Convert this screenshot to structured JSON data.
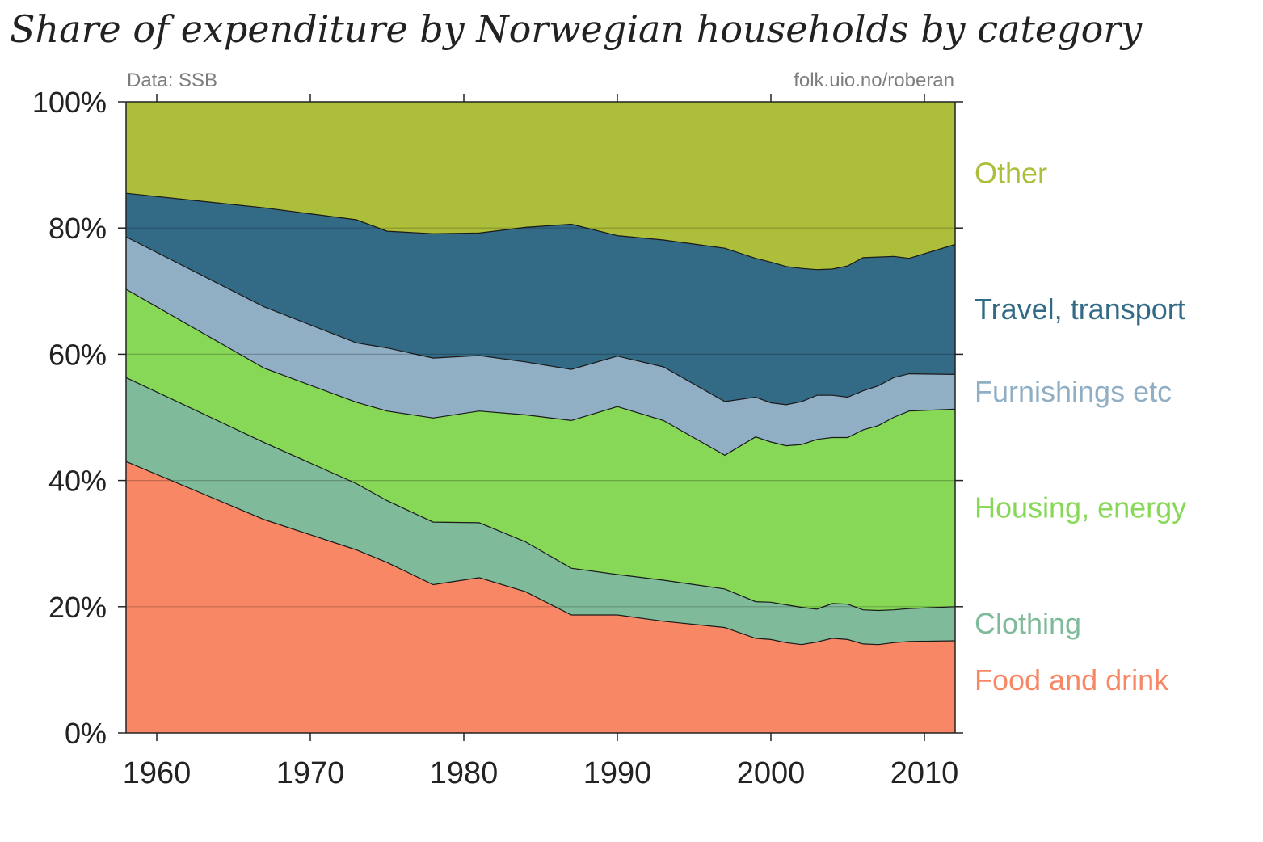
{
  "chart_data": {
    "type": "area",
    "stacked": true,
    "normalized": true,
    "title": "Share of expenditure by Norwegian households by category",
    "source_label": "Data: SSB",
    "url_label": "folk.uio.no/roberan",
    "xlabel": "",
    "ylabel": "",
    "xlim": [
      1958,
      2012
    ],
    "ylim": [
      0,
      100
    ],
    "x_ticks": [
      1960,
      1970,
      1980,
      1990,
      2000,
      2010
    ],
    "y_ticks": [
      0,
      20,
      40,
      60,
      80,
      100
    ],
    "y_tick_labels": [
      "0%",
      "20%",
      "40%",
      "60%",
      "80%",
      "100%"
    ],
    "grid": "horizontal",
    "legend": "right",
    "x": [
      1958,
      1967,
      1973,
      1975,
      1978,
      1981,
      1984,
      1987,
      1990,
      1993,
      1997,
      1999,
      2000,
      2001,
      2002,
      2003,
      2004,
      2005,
      2006,
      2007,
      2008,
      2009,
      2012
    ],
    "cumulative": [
      {
        "name": "Food and drink",
        "color": "#f88765",
        "values": [
          43.0,
          33.8,
          29.0,
          27.0,
          23.5,
          24.6,
          22.4,
          18.7,
          18.7,
          17.7,
          16.7,
          15.0,
          14.8,
          14.3,
          14.0,
          14.4,
          15.0,
          14.8,
          14.1,
          14.0,
          14.3,
          14.5,
          14.6
        ]
      },
      {
        "name": "Clothing",
        "color": "#7fbb9a",
        "values": [
          56.3,
          46.0,
          39.5,
          36.8,
          33.4,
          33.3,
          30.3,
          26.1,
          25.1,
          24.2,
          22.8,
          20.8,
          20.7,
          20.3,
          19.9,
          19.6,
          20.5,
          20.4,
          19.5,
          19.4,
          19.5,
          19.7,
          20.0
        ]
      },
      {
        "name": "Housing, energy",
        "color": "#86d856",
        "values": [
          70.3,
          57.8,
          52.4,
          51.0,
          49.9,
          51.0,
          50.4,
          49.5,
          51.7,
          49.5,
          44.0,
          46.9,
          46.1,
          45.5,
          45.7,
          46.5,
          46.8,
          46.8,
          48.0,
          48.7,
          50.0,
          51.0,
          51.3
        ]
      },
      {
        "name": "Furnishings etc",
        "color": "#90afc5",
        "values": [
          78.6,
          67.5,
          61.8,
          61.0,
          59.4,
          59.8,
          58.8,
          57.6,
          59.7,
          58.0,
          52.5,
          53.2,
          52.3,
          52.0,
          52.5,
          53.5,
          53.5,
          53.2,
          54.2,
          55.0,
          56.3,
          56.9,
          56.8
        ]
      },
      {
        "name": "Travel, transport",
        "color": "#336a86",
        "values": [
          85.5,
          83.2,
          81.3,
          79.5,
          79.1,
          79.2,
          80.1,
          80.6,
          78.8,
          78.1,
          76.8,
          75.2,
          74.6,
          73.9,
          73.6,
          73.4,
          73.5,
          74.0,
          75.3,
          75.4,
          75.5,
          75.2,
          77.4
        ]
      },
      {
        "name": "Other",
        "color": "#adbe3a",
        "values": [
          100,
          100,
          100,
          100,
          100,
          100,
          100,
          100,
          100,
          100,
          100,
          100,
          100,
          100,
          100,
          100,
          100,
          100,
          100,
          100,
          100,
          100,
          100
        ]
      }
    ]
  }
}
